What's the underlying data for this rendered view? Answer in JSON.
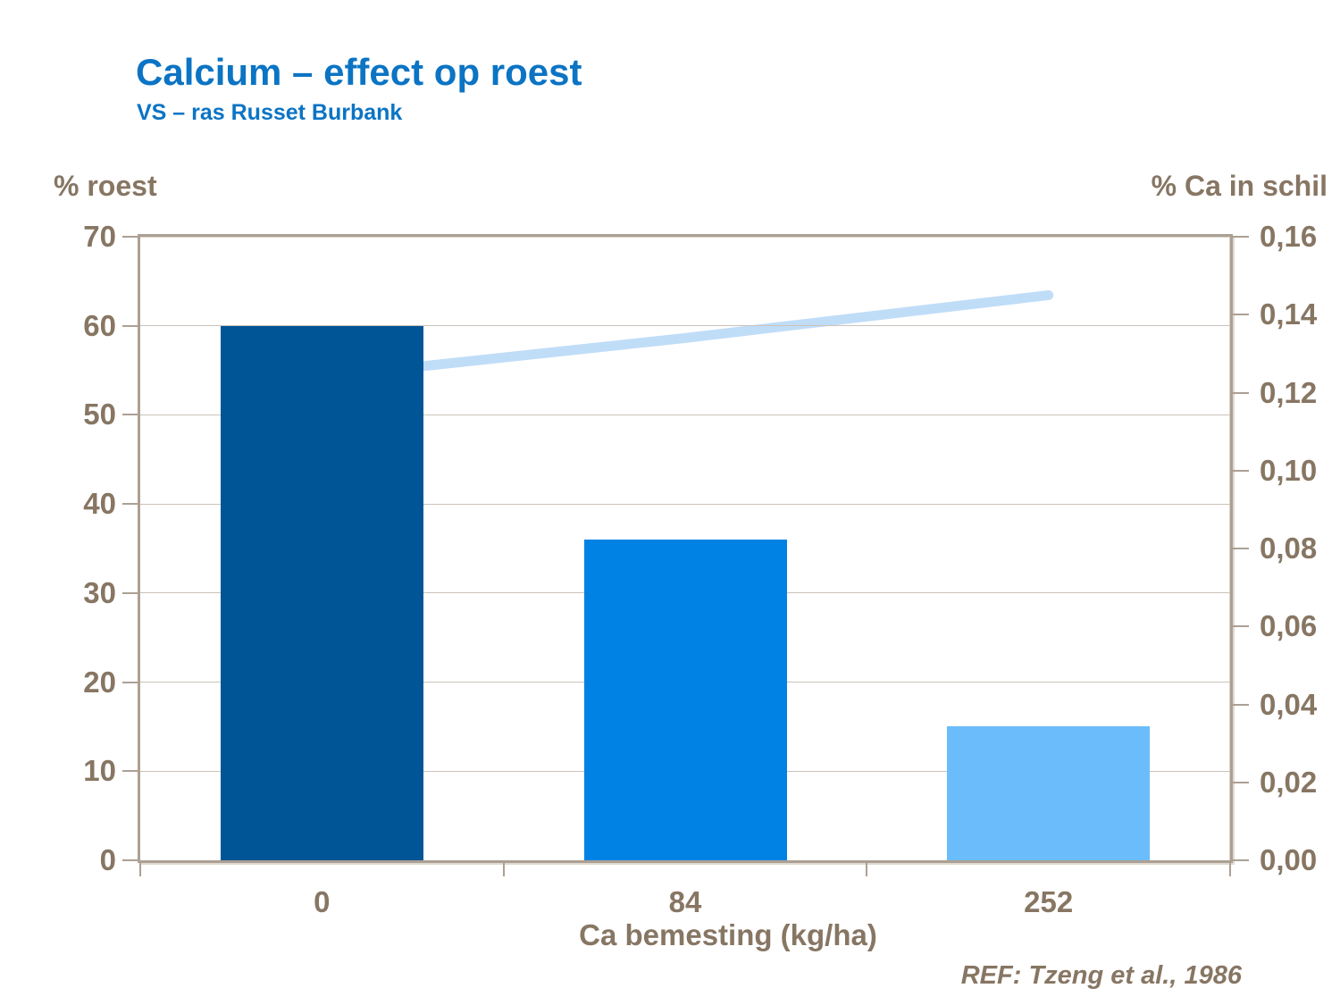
{
  "slide": {
    "title": "Calcium – effect op roest",
    "subtitle": "VS – ras Russet Burbank",
    "reference": "REF: Tzeng et al., 1986"
  },
  "colors": {
    "title_text": "#0b74c4",
    "axis_text": "#877663",
    "plot_border": "#aca094",
    "gridline": "#cbc3ba",
    "bar_colors": [
      "#005596",
      "#0082e5",
      "#6abcfb"
    ],
    "line_color": "#c0ddf8"
  },
  "chart_data": {
    "type": "bar",
    "categories": [
      "0",
      "84",
      "252"
    ],
    "series": [
      {
        "name": "% roest",
        "render": "bar",
        "axis": "left",
        "values": [
          60,
          36,
          15
        ],
        "colors": [
          "#005596",
          "#0082e5",
          "#6abcfb"
        ]
      },
      {
        "name": "% Ca in schil",
        "render": "line",
        "axis": "right",
        "values": [
          0.124,
          0.134,
          0.145
        ],
        "color": "#c0ddf8"
      }
    ],
    "xlabel": "Ca bemesting (kg/ha)",
    "left_axis": {
      "label": "% roest",
      "min": 0,
      "max": 70,
      "step": 10,
      "tick_labels": [
        "0",
        "10",
        "20",
        "30",
        "40",
        "50",
        "60",
        "70"
      ]
    },
    "right_axis": {
      "label": "% Ca in schil",
      "min": 0,
      "max": 0.16,
      "step": 0.02,
      "tick_labels": [
        "0,00",
        "0,02",
        "0,04",
        "0,06",
        "0,08",
        "0,10",
        "0,12",
        "0,14",
        "0,16"
      ]
    },
    "grid": true,
    "legend": false
  }
}
